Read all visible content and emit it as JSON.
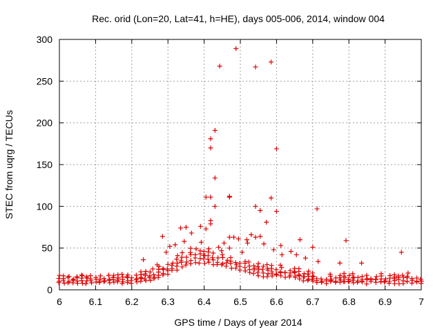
{
  "chart_data": {
    "type": "scatter",
    "title": "Rec. orid (Lon=20, Lat=41, h=HE), days 005-006, 2014, window 004",
    "xlabel": "GPS time / Days of year 2014",
    "ylabel": "STEC from uqrg / TECUs",
    "xlim": [
      6,
      7
    ],
    "ylim": [
      0,
      300
    ],
    "x_ticks": [
      "6",
      "6.1",
      "6.2",
      "6.3",
      "6.4",
      "6.5",
      "6.6",
      "6.7",
      "6.8",
      "6.9",
      "7"
    ],
    "y_ticks": [
      "0",
      "50",
      "100",
      "150",
      "200",
      "250",
      "300"
    ],
    "grid": true,
    "marker": "+",
    "color": "#e00000",
    "series": [
      {
        "name": "STEC",
        "points": [
          [
            6.443,
            268
          ],
          [
            6.488,
            289
          ],
          [
            6.542,
            267
          ],
          [
            6.585,
            273
          ],
          [
            6.418,
            181
          ],
          [
            6.418,
            170
          ],
          [
            6.43,
            191
          ],
          [
            6.43,
            134
          ],
          [
            6.6,
            169
          ],
          [
            6.405,
            111
          ],
          [
            6.418,
            111
          ],
          [
            6.43,
            100
          ],
          [
            6.47,
            112
          ],
          [
            6.47,
            111
          ],
          [
            6.542,
            100
          ],
          [
            6.555,
            95
          ],
          [
            6.585,
            110
          ],
          [
            6.6,
            94
          ],
          [
            6.572,
            81
          ],
          [
            6.712,
            97
          ],
          [
            6.792,
            59
          ],
          [
            6.945,
            45
          ],
          [
            6.285,
            64
          ],
          [
            6.335,
            74
          ],
          [
            6.35,
            75
          ],
          [
            6.365,
            68
          ],
          [
            6.39,
            76
          ],
          [
            6.405,
            73
          ],
          [
            6.418,
            83
          ],
          [
            6.418,
            79
          ],
          [
            6.47,
            63
          ],
          [
            6.482,
            63
          ],
          [
            6.495,
            61
          ],
          [
            6.518,
            60
          ],
          [
            6.53,
            66
          ],
          [
            6.542,
            63
          ],
          [
            6.555,
            64
          ],
          [
            6.665,
            60
          ],
          [
            6.612,
            53
          ],
          [
            6.7,
            51
          ],
          [
            6.232,
            36
          ],
          [
            6.258,
            25
          ],
          [
            6.27,
            30
          ],
          [
            6.295,
            45
          ],
          [
            6.305,
            52
          ],
          [
            6.32,
            54
          ],
          [
            6.345,
            58
          ],
          [
            6.378,
            49
          ],
          [
            6.392,
            57
          ],
          [
            6.402,
            41
          ],
          [
            6.44,
            51
          ],
          [
            6.455,
            56
          ],
          [
            6.47,
            50
          ],
          [
            6.505,
            45
          ],
          [
            6.52,
            56
          ],
          [
            6.565,
            55
          ],
          [
            6.592,
            48
          ],
          [
            6.615,
            42
          ],
          [
            6.64,
            46
          ],
          [
            6.655,
            42
          ],
          [
            6.68,
            38
          ],
          [
            6.715,
            34
          ],
          [
            6.775,
            32
          ],
          [
            6.835,
            32
          ]
        ]
      }
    ]
  }
}
